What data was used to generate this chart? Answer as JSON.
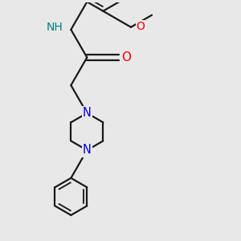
{
  "bg_color": "#e8e8e8",
  "bond_color": "#1a1a1a",
  "N_color": "#0000ee",
  "O_color": "#ee0000",
  "NH_color": "#008080",
  "bond_width": 1.6,
  "font_size": 10,
  "figsize": [
    3.0,
    3.0
  ],
  "dpi": 100,
  "xlim": [
    0.5,
    5.2
  ],
  "ylim": [
    0.2,
    5.5
  ]
}
